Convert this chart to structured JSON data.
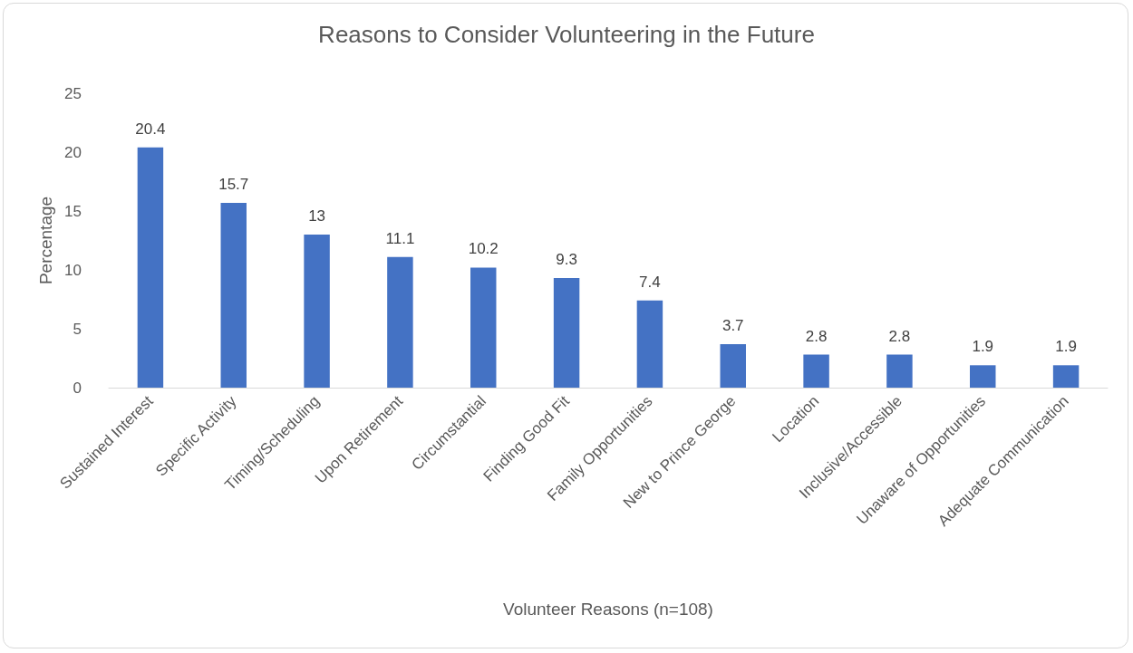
{
  "chart_data": {
    "type": "bar",
    "title": "Reasons to Consider Volunteering in the Future",
    "xlabel": "Volunteer Reasons (n=108)",
    "ylabel": "Percentage",
    "categories": [
      "Sustained Interest",
      "Specific Activity",
      "Timing/Scheduling",
      "Upon Retirement",
      "Circumstantial",
      "Finding Good Fit",
      "Family Opportunities",
      "New to Prince George",
      "Location",
      "Inclusive/Accessible",
      "Unaware of Opportunities",
      "Adequate Communication"
    ],
    "values": [
      20.4,
      15.7,
      13,
      11.1,
      10.2,
      9.3,
      7.4,
      3.7,
      2.8,
      2.8,
      1.9,
      1.9
    ],
    "color": "#4472c4",
    "ylim": [
      0,
      25
    ],
    "yticks": [
      0,
      5,
      10,
      15,
      20,
      25
    ],
    "data_labels": true,
    "grid": false
  }
}
